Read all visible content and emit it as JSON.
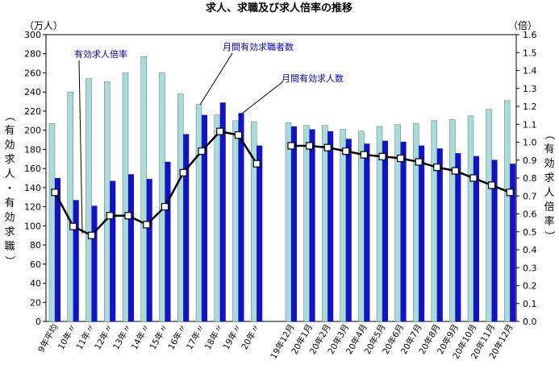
{
  "chart_data": {
    "type": "bar",
    "title": "求人、求職及び求人倍率の推移",
    "y_left_unit": "（万人）",
    "y_right_unit": "（倍）",
    "y_left_label": "（有効求人・有効求職）",
    "y_right_label": "（有効求人倍率）",
    "ylim_left": [
      0,
      300
    ],
    "yticks_left": [
      "0",
      "20",
      "40",
      "60",
      "80",
      "100",
      "120",
      "140",
      "160",
      "180",
      "200",
      "220",
      "240",
      "260",
      "280",
      "300"
    ],
    "ylim_right": [
      0,
      1.6
    ],
    "yticks_right": [
      "0.0",
      "0.1",
      "0.2",
      "0.3",
      "0.4",
      "0.5",
      "0.6",
      "0.7",
      "0.8",
      "0.9",
      "1.0",
      "1.1",
      "1.2",
      "1.3",
      "1.4",
      "1.5",
      "1.6"
    ],
    "categories": [
      "9年平均",
      "10年〃",
      "11年〃",
      "12年〃",
      "13年〃",
      "14年〃",
      "15年〃",
      "16年〃",
      "17年〃",
      "18年〃",
      "19年〃",
      "20年〃",
      "19年12月",
      "20年1月",
      "20年2月",
      "20年3月",
      "20年4月",
      "20年5月",
      "20年6月",
      "20年7月",
      "20年8月",
      "20年9月",
      "20年10月",
      "20年11月",
      "20年12月"
    ],
    "series": [
      {
        "name": "月間有効求職者数",
        "axis": "left",
        "type": "bar",
        "color": "#a9dbd8",
        "values": [
          207,
          240,
          254,
          251,
          260,
          277,
          260,
          238,
          227,
          216,
          210,
          209,
          208,
          205,
          205,
          201,
          199,
          204,
          206,
          207,
          210,
          211,
          215,
          222,
          231
        ]
      },
      {
        "name": "月間有効求人数",
        "axis": "left",
        "type": "bar",
        "color": "#1212cc",
        "values": [
          150,
          127,
          121,
          147,
          154,
          149,
          167,
          196,
          216,
          229,
          218,
          184,
          204,
          201,
          199,
          191,
          186,
          189,
          188,
          184,
          181,
          176,
          173,
          169,
          165
        ]
      },
      {
        "name": "有効求人倍率",
        "axis": "right",
        "type": "line",
        "color": "#000000",
        "values": [
          0.72,
          0.53,
          0.48,
          0.59,
          0.59,
          0.54,
          0.64,
          0.83,
          0.95,
          1.06,
          1.04,
          0.88,
          0.98,
          0.98,
          0.97,
          0.95,
          0.93,
          0.92,
          0.91,
          0.89,
          0.86,
          0.84,
          0.8,
          0.76,
          0.72
        ]
      }
    ],
    "grid": false
  }
}
